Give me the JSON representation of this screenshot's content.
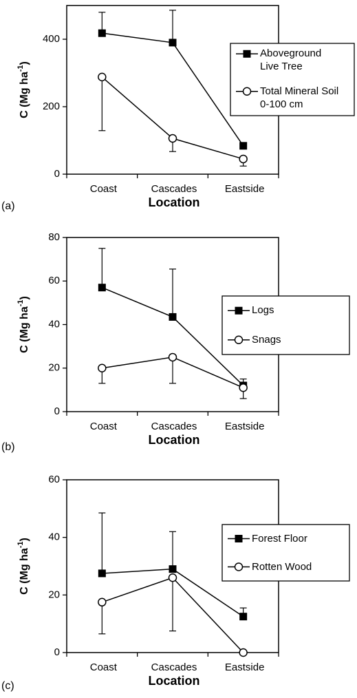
{
  "chart_data": [
    {
      "type": "line",
      "panel_label": "(a)",
      "xlabel": "Location",
      "ylabel": {
        "text": "C  (Mg ha",
        "sup": "-1",
        "end": ")"
      },
      "categories": [
        "Coast",
        "Cascades",
        "Eastside"
      ],
      "ylim": [
        0,
        500
      ],
      "yticks": [
        0,
        200,
        400
      ],
      "legend_position": "right",
      "series": [
        {
          "name": "Aboveground Live Tree",
          "color": "#000000",
          "marker": "filled-square",
          "values": [
            418,
            390,
            84
          ],
          "errors": [
            62,
            96,
            null
          ],
          "error_direction": "up"
        },
        {
          "name": "Total Mineral Soil 0-100 cm",
          "color": "#000000",
          "marker": "open-circle",
          "values": [
            288,
            106,
            45
          ],
          "errors": [
            159,
            39,
            21
          ],
          "error_direction": "down"
        }
      ]
    },
    {
      "type": "line",
      "panel_label": "(b)",
      "xlabel": "Location",
      "ylabel": {
        "text": "C  (Mg ha",
        "sup": "-1",
        "end": ")"
      },
      "categories": [
        "Coast",
        "Cascades",
        "Eastside"
      ],
      "ylim": [
        0,
        80
      ],
      "yticks": [
        0,
        20,
        40,
        60,
        80
      ],
      "legend_position": "right",
      "series": [
        {
          "name": "Logs",
          "color": "#000000",
          "marker": "filled-square",
          "values": [
            57,
            43.5,
            12
          ],
          "errors": [
            18,
            22,
            3
          ],
          "error_direction": "up"
        },
        {
          "name": "Snags",
          "color": "#000000",
          "marker": "open-circle",
          "values": [
            20,
            25,
            11
          ],
          "errors": [
            7,
            12,
            5
          ],
          "error_direction": "down"
        }
      ]
    },
    {
      "type": "line",
      "panel_label": "(c)",
      "xlabel": "Location",
      "ylabel": {
        "text": "C  (Mg ha",
        "sup": "-1",
        "end": ")"
      },
      "categories": [
        "Coast",
        "Cascades",
        "Eastside"
      ],
      "ylim": [
        0,
        60
      ],
      "yticks": [
        0,
        20,
        40,
        60
      ],
      "legend_position": "right",
      "series": [
        {
          "name": "Forest Floor",
          "color": "#000000",
          "marker": "filled-square",
          "values": [
            27.5,
            29,
            12.5
          ],
          "errors": [
            21,
            13,
            3
          ],
          "error_direction": "up"
        },
        {
          "name": "Rotten Wood",
          "color": "#000000",
          "marker": "open-circle",
          "values": [
            17.5,
            26,
            0
          ],
          "errors": [
            11,
            18.5,
            null
          ],
          "error_direction": "down"
        }
      ]
    }
  ]
}
